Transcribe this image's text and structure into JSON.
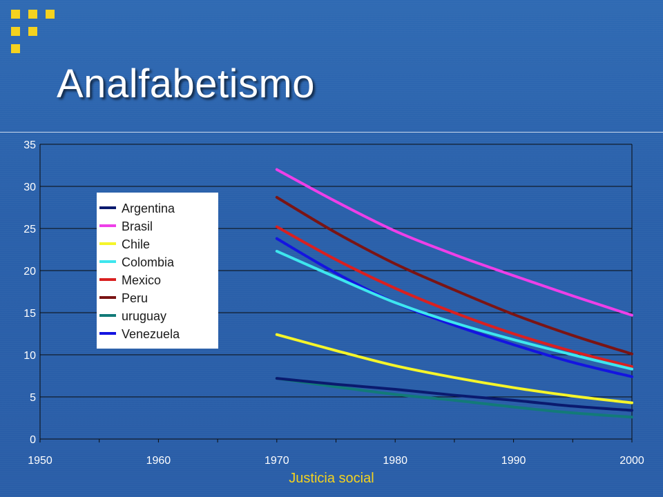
{
  "slide": {
    "title": "Analfabetismo",
    "footer": "Justicia social",
    "accent_color": "#f4d21f"
  },
  "chart_data": {
    "type": "line",
    "title": "",
    "xlabel": "",
    "ylabel": "",
    "xlim": [
      1950,
      2000
    ],
    "ylim": [
      0,
      35
    ],
    "grid": true,
    "legend_position": "top-left",
    "x_ticks": [
      "1950",
      "1960",
      "1970",
      "1980",
      "1990",
      "2000"
    ],
    "y_ticks": [
      "0",
      "5",
      "10",
      "15",
      "20",
      "25",
      "30",
      "35"
    ],
    "x": [
      1970,
      1975,
      1980,
      1985,
      1990,
      1995,
      2000
    ],
    "series": [
      {
        "name": "Argentina",
        "color": "#0a1a6e",
        "values": [
          7.2,
          6.5,
          5.9,
          5.2,
          4.6,
          3.9,
          3.4
        ]
      },
      {
        "name": "Brasil",
        "color": "#ee3fe8",
        "values": [
          32,
          28.2,
          24.7,
          21.9,
          19.4,
          17,
          14.7
        ]
      },
      {
        "name": "Chile",
        "color": "#f5f52a",
        "values": [
          12.4,
          10.5,
          8.7,
          7.3,
          6.1,
          5.1,
          4.3
        ]
      },
      {
        "name": "Colombia",
        "color": "#3ee6ee",
        "values": [
          22.3,
          19.2,
          16.2,
          13.8,
          11.8,
          10,
          8.3
        ]
      },
      {
        "name": "Mexico",
        "color": "#d92020",
        "values": [
          25.2,
          21.3,
          17.9,
          15,
          12.5,
          10.4,
          8.6
        ]
      },
      {
        "name": "Peru",
        "color": "#7a1414",
        "values": [
          28.7,
          24.5,
          20.8,
          17.7,
          14.8,
          12.3,
          10.1
        ]
      },
      {
        "name": "uruguay",
        "color": "#127a78",
        "values": [
          7.2,
          6.2,
          5.3,
          4.6,
          3.8,
          3.1,
          2.6
        ]
      },
      {
        "name": "Venezuela",
        "color": "#1414e0",
        "values": [
          23.8,
          19.7,
          16.2,
          13.5,
          11.2,
          9.1,
          7.4
        ]
      }
    ]
  }
}
